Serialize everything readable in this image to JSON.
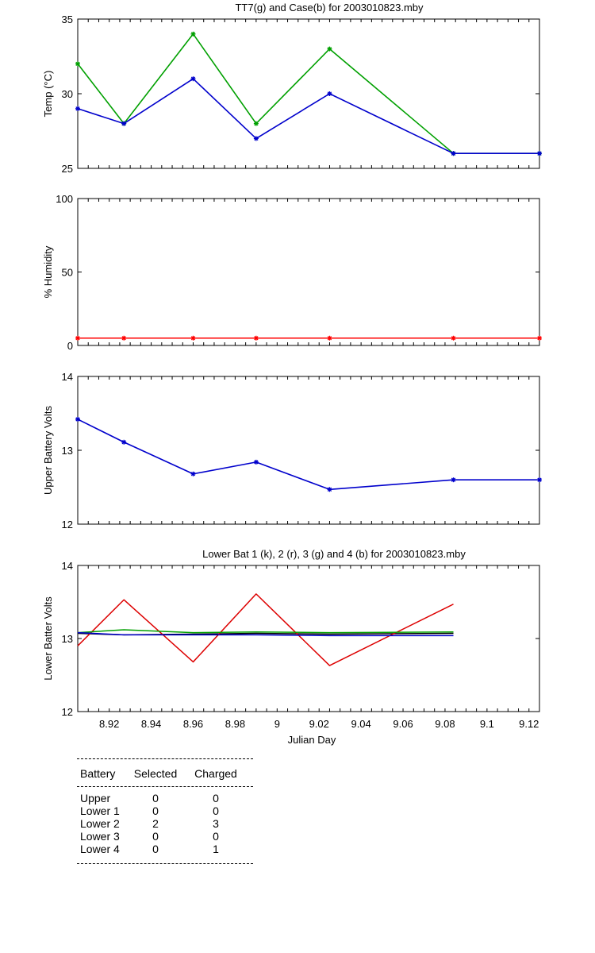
{
  "chart_data": [
    {
      "type": "line",
      "title": "TT7(g) and Case(b) for 2003010823.mby",
      "xlabel": "",
      "ylabel": "Temp  (°C)",
      "xlim": [
        8.905,
        9.125
      ],
      "ylim": [
        25,
        35
      ],
      "yticks": [
        "25",
        "30",
        "35"
      ],
      "grid": false,
      "x": [
        8.905,
        8.927,
        8.96,
        8.99,
        9.025,
        9.084,
        9.125
      ],
      "series": [
        {
          "color": "#00a000",
          "markers": true,
          "values": [
            32,
            28,
            34,
            28,
            33,
            26,
            26
          ]
        },
        {
          "color": "#0000cc",
          "markers": true,
          "values": [
            29,
            28,
            31,
            27,
            30,
            26,
            26
          ]
        }
      ]
    },
    {
      "type": "line",
      "title": "",
      "xlabel": "",
      "ylabel": "% Humidity",
      "xlim": [
        8.905,
        9.125
      ],
      "ylim": [
        0,
        100
      ],
      "yticks": [
        "0",
        "50",
        "100"
      ],
      "grid": false,
      "x": [
        8.905,
        8.927,
        8.96,
        8.99,
        9.025,
        9.084,
        9.125
      ],
      "series": [
        {
          "color": "#ff0000",
          "markers": true,
          "values": [
            5,
            5,
            5,
            5,
            5,
            5,
            5
          ]
        }
      ]
    },
    {
      "type": "line",
      "title": "",
      "xlabel": "",
      "ylabel": "Upper Battery Volts",
      "xlim": [
        8.905,
        9.125
      ],
      "ylim": [
        12,
        14
      ],
      "yticks": [
        "12",
        "13",
        "14"
      ],
      "grid": false,
      "x": [
        8.905,
        8.927,
        8.96,
        8.99,
        9.025,
        9.084,
        9.125
      ],
      "series": [
        {
          "color": "#0000cc",
          "markers": true,
          "values": [
            13.42,
            13.11,
            12.68,
            12.84,
            12.47,
            12.6,
            12.6
          ]
        }
      ]
    },
    {
      "type": "line",
      "title": "Lower Bat 1 (k), 2 (r), 3 (g) and 4 (b) for 2003010823.mby",
      "xlabel": "Julian Day",
      "ylabel": "Lower Batter Volts",
      "xlim": [
        8.905,
        9.125
      ],
      "ylim": [
        12,
        14
      ],
      "yticks": [
        "12",
        "13",
        "14"
      ],
      "xticks": [
        "8.92",
        "8.94",
        "8.96",
        "8.98",
        "9",
        "9.02",
        "9.04",
        "9.06",
        "9.08",
        "9.1",
        "9.12"
      ],
      "grid": false,
      "x": [
        8.905,
        8.927,
        8.96,
        8.99,
        9.025,
        9.084
      ],
      "series": [
        {
          "color": "#000000",
          "markers": false,
          "values": [
            13.07,
            13.05,
            13.06,
            13.07,
            13.06,
            13.07
          ]
        },
        {
          "color": "#dd0000",
          "markers": false,
          "values": [
            12.9,
            13.53,
            12.68,
            13.61,
            12.63,
            13.47
          ]
        },
        {
          "color": "#00a000",
          "markers": false,
          "values": [
            13.08,
            13.12,
            13.08,
            13.09,
            13.08,
            13.09
          ]
        },
        {
          "color": "#0000cc",
          "markers": false,
          "values": [
            13.08,
            13.05,
            13.05,
            13.05,
            13.04,
            13.04
          ]
        }
      ]
    }
  ],
  "battery_table": {
    "headers": [
      "Battery",
      "Selected",
      "Charged"
    ],
    "rows": [
      [
        "Upper",
        "0",
        "0"
      ],
      [
        "Lower 1",
        "0",
        "0"
      ],
      [
        "Lower 2",
        "2",
        "3"
      ],
      [
        "Lower 3",
        "0",
        "0"
      ],
      [
        "Lower 4",
        "0",
        "1"
      ]
    ]
  }
}
